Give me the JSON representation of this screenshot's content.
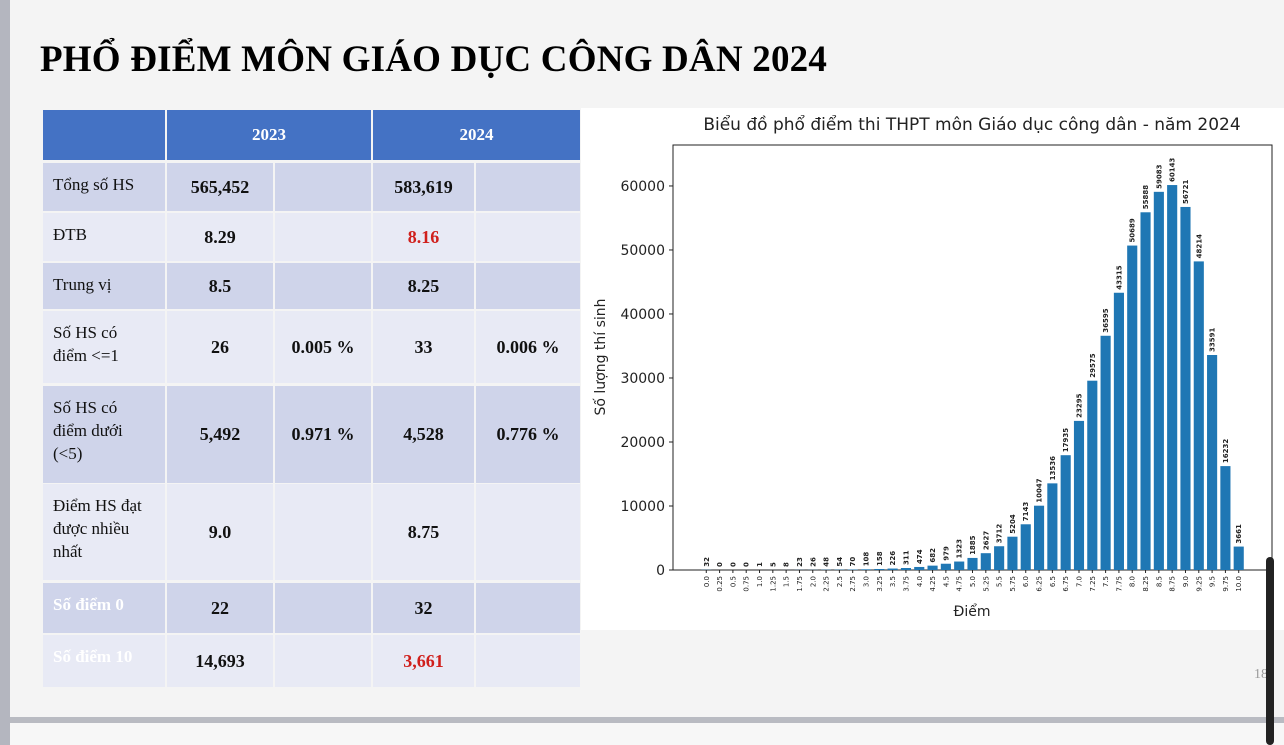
{
  "header": {
    "title": "PHỔ ĐIỂM MÔN GIÁO DỤC CÔNG DÂN 2024"
  },
  "table": {
    "header": [
      "2023",
      "2024"
    ],
    "rows": [
      [
        "Tổng số HS",
        "565,452",
        null,
        "583,619",
        null
      ],
      [
        "ĐTB",
        "8.29",
        null,
        "8.16",
        null
      ],
      [
        "Trung vị",
        "8.5",
        null,
        "8.25",
        null
      ],
      [
        "Số HS có điểm <=1",
        "26",
        "0.005 %",
        "33",
        "0.006 %"
      ],
      [
        "Số HS có điểm dưới (<5)",
        "5,492",
        "0.971 %",
        "4,528",
        "0.776 %"
      ],
      [
        "Điểm HS đạt được nhiều nhất",
        "9.0",
        null,
        "8.75",
        null
      ],
      [
        "Số điểm 0",
        "22",
        null,
        "32",
        null
      ],
      [
        "Số điểm 10",
        "14,693",
        null,
        "3,661",
        null
      ]
    ]
  },
  "chart_data": {
    "type": "bar",
    "title": "Biểu đồ phổ điểm thi THPT môn Giáo dục công dân - năm 2024",
    "x_label": "Điểm",
    "y_label": "Số lượng thí sinh",
    "categories": [
      "0.0",
      "0.25",
      "0.5",
      "0.75",
      "1.0",
      "1.25",
      "1.5",
      "1.75",
      "2.0",
      "2.25",
      "2.5",
      "2.75",
      "3.0",
      "3.25",
      "3.5",
      "3.75",
      "4.0",
      "4.25",
      "4.5",
      "4.75",
      "5.0",
      "5.25",
      "5.5",
      "5.75",
      "6.0",
      "6.25",
      "6.5",
      "6.75",
      "7.0",
      "7.25",
      "7.5",
      "7.75",
      "8.0",
      "8.25",
      "8.5",
      "8.75",
      "9.0",
      "9.25",
      "9.5",
      "9.75",
      "10.0"
    ],
    "values": [
      32,
      0,
      0,
      0,
      1,
      5,
      8,
      23,
      26,
      48,
      54,
      70,
      108,
      158,
      226,
      311,
      474,
      682,
      979,
      1323,
      1885,
      2627,
      3712,
      5204,
      7143,
      10047,
      13536,
      17935,
      23295,
      29575,
      36595,
      43315,
      50689,
      55888,
      59083,
      60143,
      56721,
      48214,
      33591,
      16232,
      3661
    ],
    "color": "#1f77b4",
    "ylim": [
      0,
      66400
    ],
    "yticks": [
      0,
      10000,
      20000,
      30000,
      40000,
      50000,
      60000
    ]
  },
  "page_number": "18"
}
